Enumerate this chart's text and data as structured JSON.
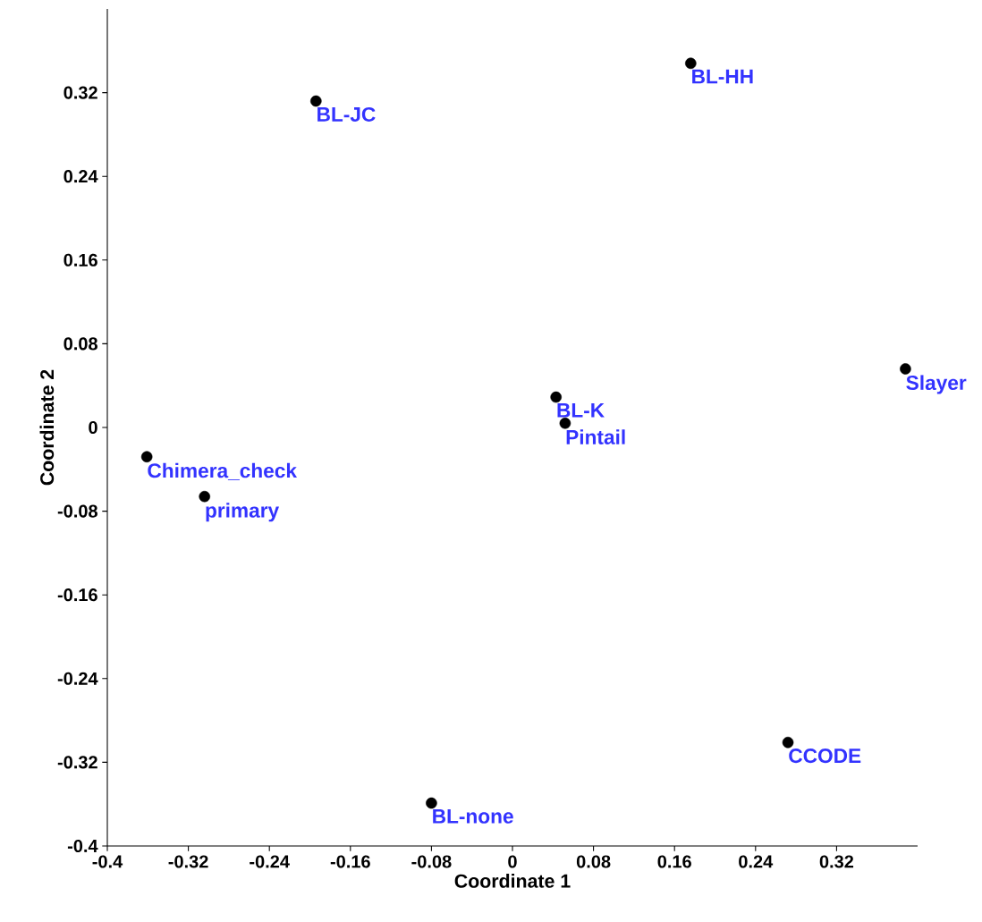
{
  "chart_data": {
    "type": "scatter",
    "xlabel": "Coordinate 1",
    "ylabel": "Coordinate 2",
    "xlim": [
      -0.4,
      0.4
    ],
    "ylim": [
      -0.4,
      0.4
    ],
    "xticks": [
      -0.4,
      -0.32,
      -0.24,
      -0.16,
      -0.08,
      0,
      0.08,
      0.16,
      0.24,
      0.32
    ],
    "yticks": [
      -0.4,
      -0.32,
      -0.24,
      -0.16,
      -0.08,
      0,
      0.08,
      0.16,
      0.24,
      0.32
    ],
    "grid": false,
    "series": [
      {
        "color": "#000000",
        "x": [
          0.176,
          -0.194,
          0.388,
          0.043,
          0.052,
          -0.361,
          -0.304,
          0.272,
          -0.08
        ],
        "values": [
          0.348,
          0.312,
          0.056,
          0.029,
          0.004,
          -0.028,
          -0.066,
          -0.301,
          -0.359
        ]
      }
    ],
    "annotations": [
      {
        "text": "BL-HH",
        "x": 0.176,
        "y": 0.348
      },
      {
        "text": "BL-JC",
        "x": -0.194,
        "y": 0.312
      },
      {
        "text": "Slayer",
        "x": 0.388,
        "y": 0.056
      },
      {
        "text": "BL-K",
        "x": 0.043,
        "y": 0.029
      },
      {
        "text": "Pintail",
        "x": 0.052,
        "y": 0.004
      },
      {
        "text": "Chimera_check",
        "x": -0.361,
        "y": -0.028
      },
      {
        "text": "primary",
        "x": -0.304,
        "y": -0.066
      },
      {
        "text": "CCODE",
        "x": 0.272,
        "y": -0.301
      },
      {
        "text": "BL-none",
        "x": -0.08,
        "y": -0.359
      }
    ]
  }
}
